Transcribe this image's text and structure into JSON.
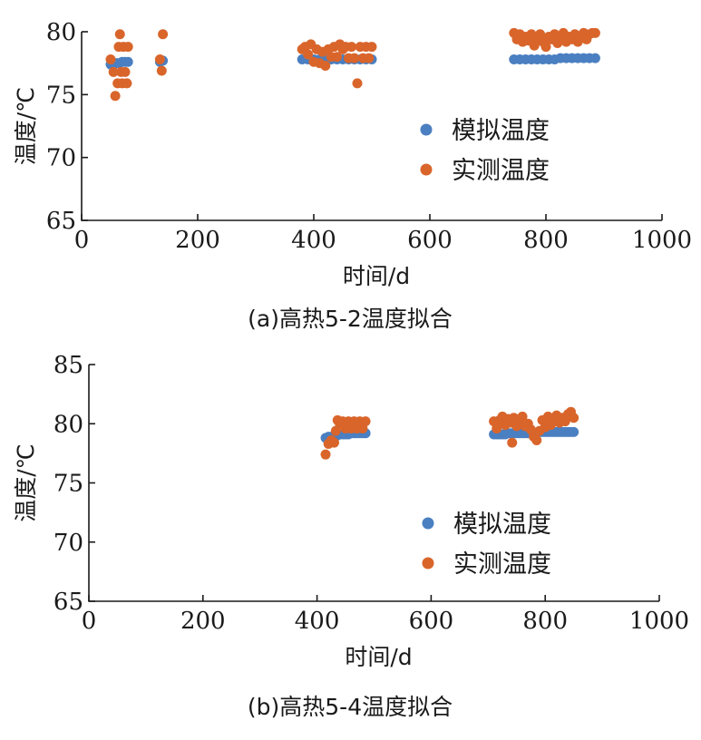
{
  "chart_data": [
    {
      "type": "scatter",
      "caption": "(a)高热5-2温度拟合",
      "xlabel": "时间/d",
      "ylabel": "温度/℃",
      "xlim": [
        0,
        1000
      ],
      "ylim": [
        65,
        80
      ],
      "xticks": [
        "0",
        "200",
        "400",
        "600",
        "800",
        "1000"
      ],
      "yticks": [
        "65",
        "70",
        "75",
        "80"
      ],
      "legend_position": "right-middle",
      "grid": false,
      "series": [
        {
          "name": "模拟温度",
          "color": "#4a7fc1",
          "points": [
            [
              50,
              77.4
            ],
            [
              55,
              77.4
            ],
            [
              60,
              77.5
            ],
            [
              65,
              77.5
            ],
            [
              70,
              77.6
            ],
            [
              75,
              77.6
            ],
            [
              80,
              77.6
            ],
            [
              135,
              77.6
            ],
            [
              140,
              77.7
            ],
            [
              380,
              77.8
            ],
            [
              390,
              77.8
            ],
            [
              400,
              77.8
            ],
            [
              410,
              77.8
            ],
            [
              420,
              77.8
            ],
            [
              430,
              77.8
            ],
            [
              440,
              77.8
            ],
            [
              450,
              77.8
            ],
            [
              460,
              77.8
            ],
            [
              470,
              77.8
            ],
            [
              480,
              77.8
            ],
            [
              490,
              77.8
            ],
            [
              500,
              77.8
            ],
            [
              745,
              77.8
            ],
            [
              755,
              77.8
            ],
            [
              765,
              77.8
            ],
            [
              775,
              77.8
            ],
            [
              785,
              77.8
            ],
            [
              795,
              77.8
            ],
            [
              805,
              77.8
            ],
            [
              815,
              77.8
            ],
            [
              825,
              77.9
            ],
            [
              835,
              77.9
            ],
            [
              845,
              77.9
            ],
            [
              855,
              77.9
            ],
            [
              865,
              77.9
            ],
            [
              875,
              77.9
            ],
            [
              885,
              77.9
            ]
          ]
        },
        {
          "name": "实测温度",
          "color": "#d9652b",
          "points": [
            [
              50,
              77.8
            ],
            [
              55,
              76.8
            ],
            [
              58,
              74.9
            ],
            [
              62,
              75.9
            ],
            [
              64,
              78.8
            ],
            [
              66,
              79.8
            ],
            [
              68,
              76.8
            ],
            [
              70,
              75.9
            ],
            [
              72,
              78.8
            ],
            [
              75,
              76.8
            ],
            [
              78,
              75.9
            ],
            [
              80,
              78.8
            ],
            [
              135,
              77.8
            ],
            [
              138,
              76.9
            ],
            [
              140,
              79.8
            ],
            [
              380,
              78.6
            ],
            [
              385,
              78.8
            ],
            [
              390,
              78.2
            ],
            [
              395,
              79.0
            ],
            [
              400,
              77.6
            ],
            [
              405,
              78.6
            ],
            [
              410,
              77.5
            ],
            [
              415,
              78.4
            ],
            [
              420,
              77.3
            ],
            [
              425,
              78.6
            ],
            [
              430,
              78.0
            ],
            [
              435,
              78.8
            ],
            [
              440,
              78.0
            ],
            [
              445,
              79.0
            ],
            [
              450,
              78.6
            ],
            [
              455,
              78.8
            ],
            [
              460,
              77.9
            ],
            [
              465,
              78.8
            ],
            [
              470,
              77.9
            ],
            [
              475,
              75.9
            ],
            [
              480,
              78.8
            ],
            [
              485,
              77.9
            ],
            [
              490,
              78.8
            ],
            [
              495,
              77.9
            ],
            [
              500,
              78.8
            ],
            [
              745,
              79.9
            ],
            [
              750,
              79.4
            ],
            [
              755,
              79.8
            ],
            [
              760,
              79.2
            ],
            [
              765,
              79.6
            ],
            [
              770,
              79.3
            ],
            [
              775,
              79.8
            ],
            [
              780,
              78.9
            ],
            [
              785,
              79.5
            ],
            [
              790,
              79.8
            ],
            [
              795,
              79.2
            ],
            [
              800,
              78.8
            ],
            [
              805,
              79.6
            ],
            [
              810,
              79.4
            ],
            [
              815,
              79.8
            ],
            [
              820,
              79.1
            ],
            [
              825,
              79.5
            ],
            [
              830,
              79.9
            ],
            [
              835,
              79.2
            ],
            [
              840,
              79.6
            ],
            [
              845,
              79.4
            ],
            [
              850,
              79.8
            ],
            [
              855,
              79.2
            ],
            [
              860,
              79.6
            ],
            [
              865,
              79.9
            ],
            [
              870,
              79.4
            ],
            [
              875,
              79.8
            ],
            [
              880,
              79.9
            ],
            [
              885,
              79.9
            ]
          ]
        }
      ]
    },
    {
      "type": "scatter",
      "caption": "(b)高热5-4温度拟合",
      "xlabel": "时间/d",
      "ylabel": "温度/℃",
      "xlim": [
        0,
        1000
      ],
      "ylim": [
        65,
        85
      ],
      "xticks": [
        "0",
        "200",
        "400",
        "600",
        "800",
        "1000"
      ],
      "yticks": [
        "65",
        "70",
        "75",
        "80",
        "85"
      ],
      "legend_position": "right-middle",
      "grid": false,
      "series": [
        {
          "name": "模拟温度",
          "color": "#4a7fc1",
          "points": [
            [
              415,
              78.8
            ],
            [
              420,
              78.9
            ],
            [
              425,
              78.9
            ],
            [
              430,
              79.0
            ],
            [
              435,
              79.0
            ],
            [
              440,
              79.1
            ],
            [
              445,
              79.1
            ],
            [
              450,
              79.1
            ],
            [
              455,
              79.1
            ],
            [
              460,
              79.2
            ],
            [
              465,
              79.2
            ],
            [
              470,
              79.2
            ],
            [
              475,
              79.2
            ],
            [
              480,
              79.2
            ],
            [
              485,
              79.2
            ],
            [
              710,
              79.1
            ],
            [
              715,
              79.1
            ],
            [
              720,
              79.1
            ],
            [
              725,
              79.1
            ],
            [
              730,
              79.1
            ],
            [
              735,
              79.2
            ],
            [
              740,
              79.2
            ],
            [
              745,
              79.2
            ],
            [
              750,
              79.2
            ],
            [
              755,
              79.2
            ],
            [
              760,
              79.2
            ],
            [
              765,
              79.2
            ],
            [
              770,
              79.2
            ],
            [
              775,
              79.2
            ],
            [
              780,
              79.2
            ],
            [
              785,
              79.2
            ],
            [
              790,
              79.3
            ],
            [
              795,
              79.3
            ],
            [
              800,
              79.3
            ],
            [
              805,
              79.3
            ],
            [
              810,
              79.3
            ],
            [
              815,
              79.3
            ],
            [
              820,
              79.3
            ],
            [
              825,
              79.3
            ],
            [
              830,
              79.3
            ],
            [
              835,
              79.3
            ],
            [
              840,
              79.3
            ],
            [
              845,
              79.3
            ],
            [
              850,
              79.3
            ]
          ]
        },
        {
          "name": "实测温度",
          "color": "#d9652b",
          "points": [
            [
              415,
              77.4
            ],
            [
              420,
              78.3
            ],
            [
              425,
              78.6
            ],
            [
              430,
              78.4
            ],
            [
              433,
              79.4
            ],
            [
              436,
              80.3
            ],
            [
              440,
              80.0
            ],
            [
              445,
              80.2
            ],
            [
              450,
              79.6
            ],
            [
              455,
              80.2
            ],
            [
              460,
              79.6
            ],
            [
              465,
              80.2
            ],
            [
              470,
              79.6
            ],
            [
              475,
              80.2
            ],
            [
              480,
              79.6
            ],
            [
              485,
              80.2
            ],
            [
              710,
              80.2
            ],
            [
              715,
              79.6
            ],
            [
              720,
              80.3
            ],
            [
              725,
              80.6
            ],
            [
              730,
              79.9
            ],
            [
              735,
              80.4
            ],
            [
              740,
              80.1
            ],
            [
              742,
              78.4
            ],
            [
              745,
              80.5
            ],
            [
              750,
              79.8
            ],
            [
              755,
              80.3
            ],
            [
              760,
              80.6
            ],
            [
              765,
              79.8
            ],
            [
              770,
              80.0
            ],
            [
              775,
              79.5
            ],
            [
              780,
              78.9
            ],
            [
              785,
              78.6
            ],
            [
              790,
              79.4
            ],
            [
              795,
              80.3
            ],
            [
              800,
              79.7
            ],
            [
              805,
              80.6
            ],
            [
              810,
              79.9
            ],
            [
              815,
              80.4
            ],
            [
              820,
              80.7
            ],
            [
              825,
              80.1
            ],
            [
              830,
              80.5
            ],
            [
              835,
              80.2
            ],
            [
              840,
              80.8
            ],
            [
              845,
              81.0
            ],
            [
              850,
              80.5
            ]
          ]
        }
      ]
    }
  ]
}
